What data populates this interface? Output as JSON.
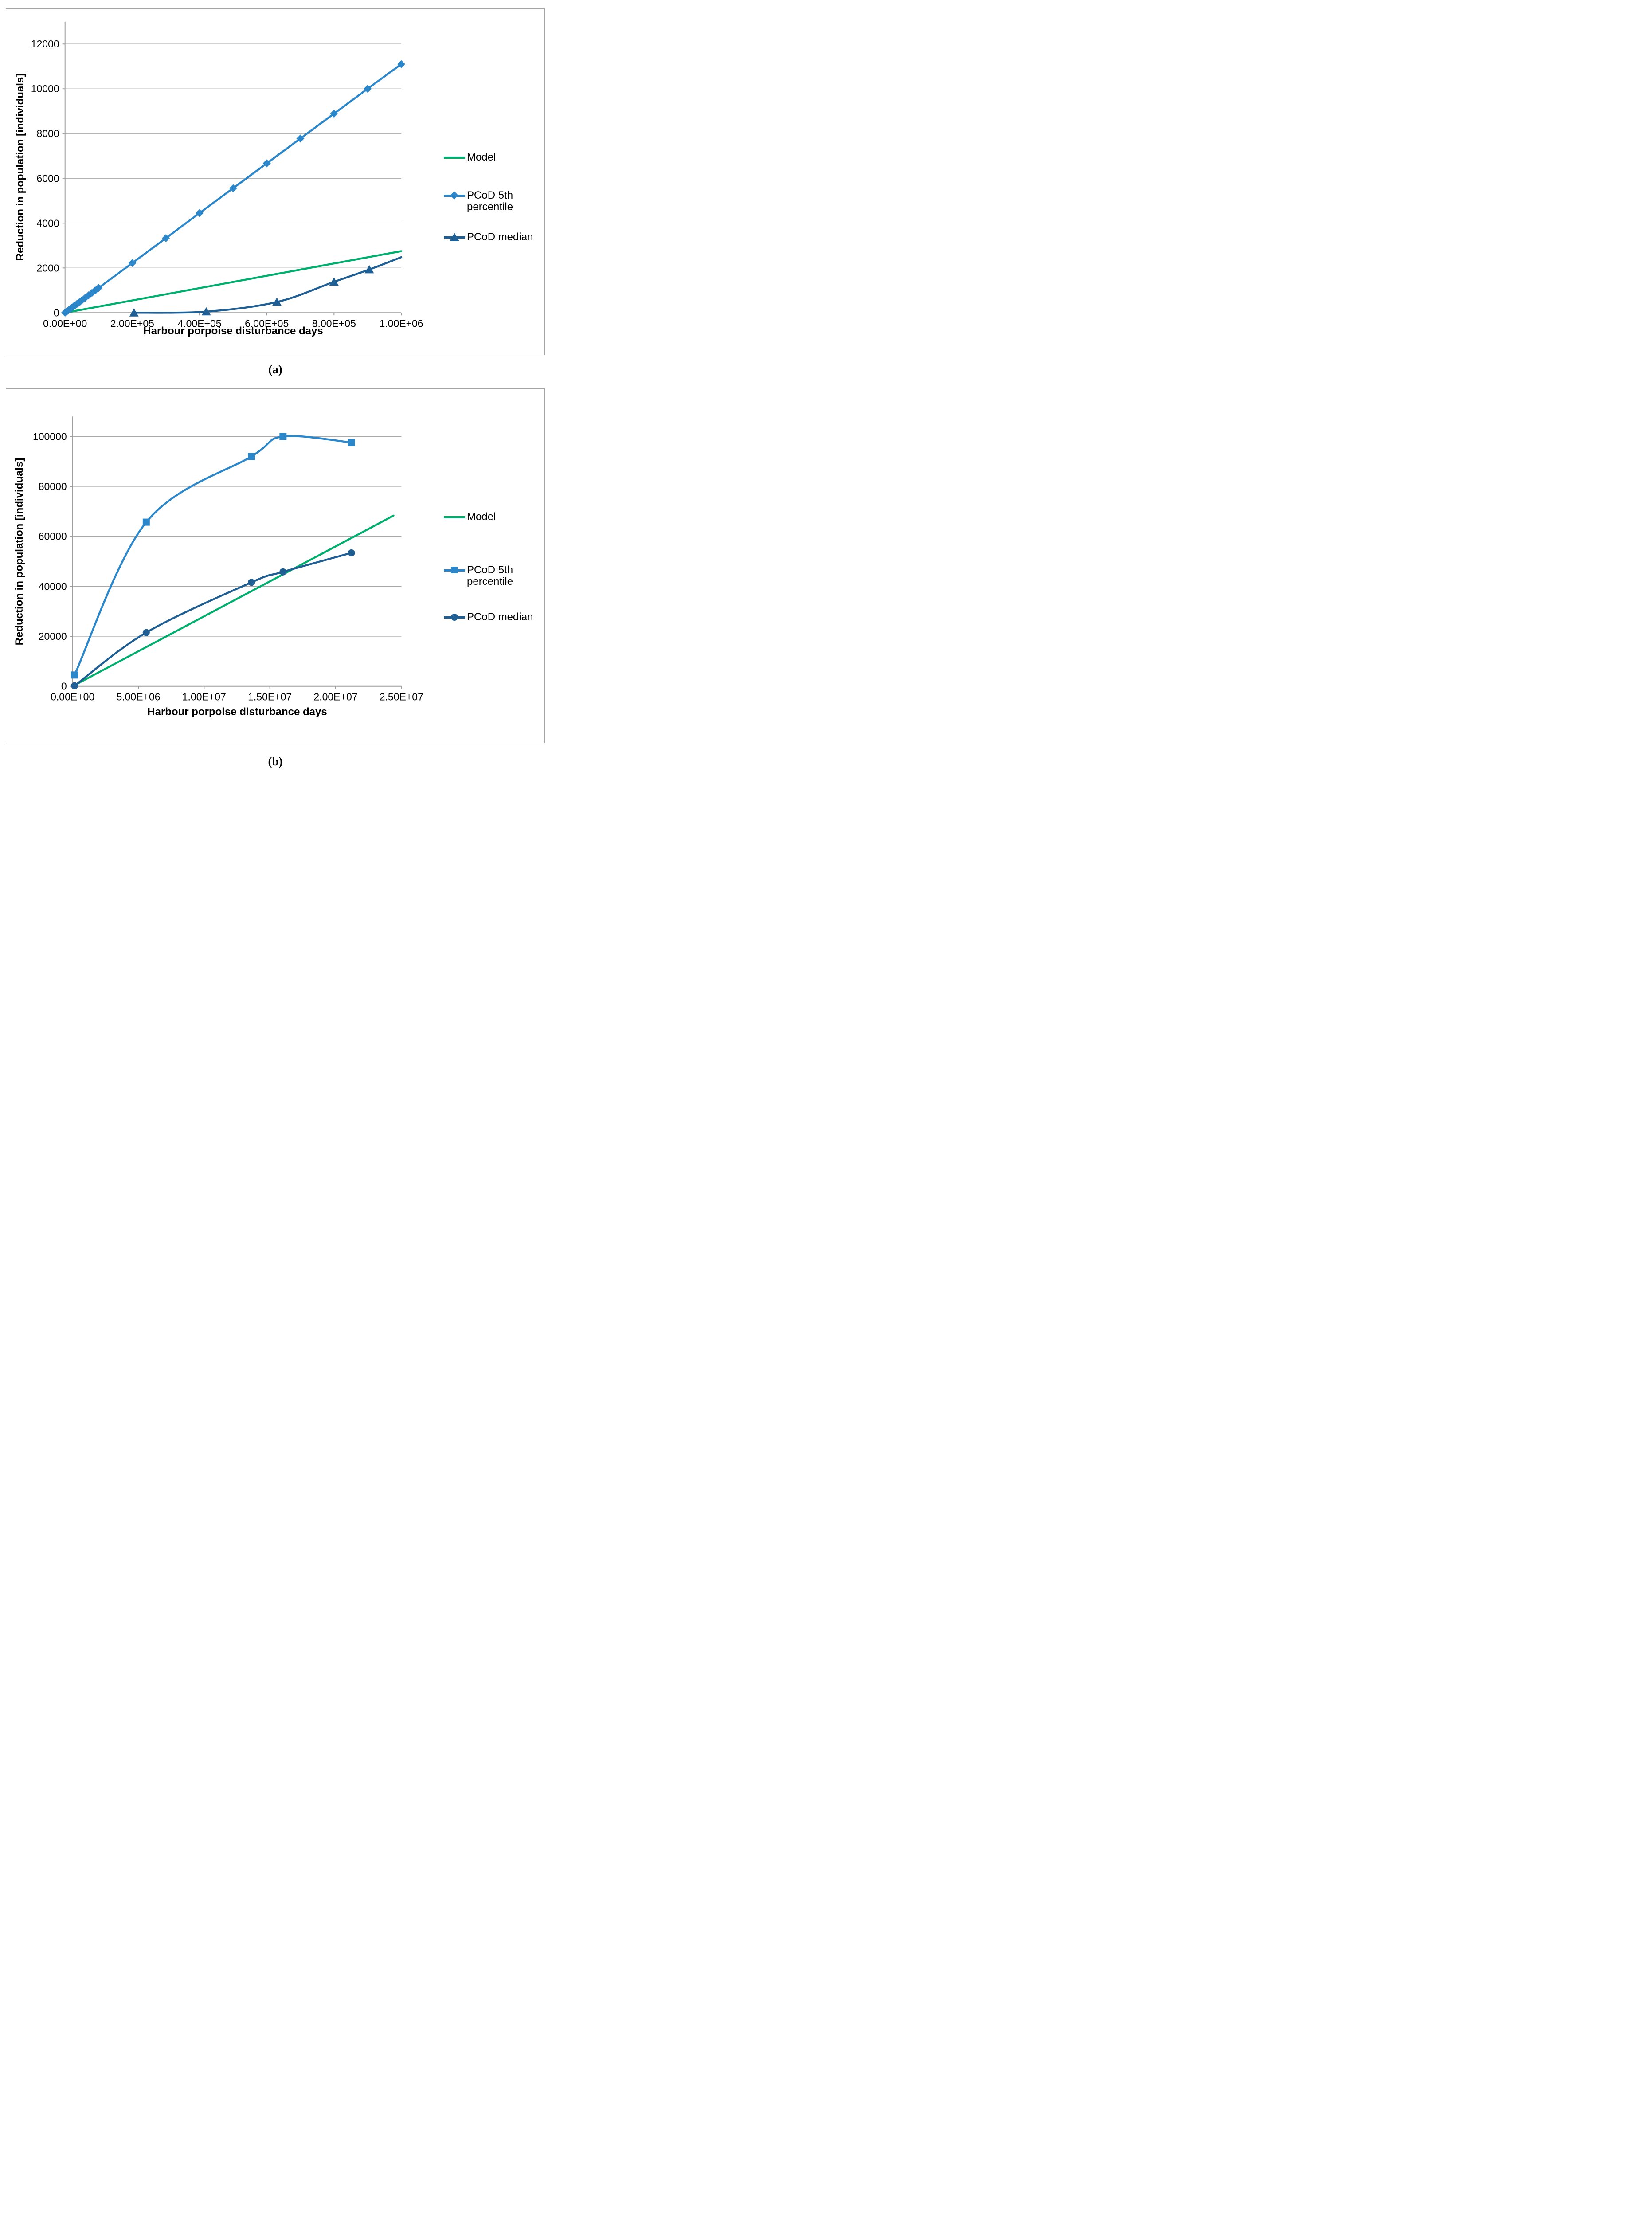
{
  "captions": {
    "a": "(a)",
    "b": "(b)"
  },
  "colors": {
    "model": "#00ae6e",
    "pcod5": "#2b87c9",
    "pcodMedian": "#1f5f94",
    "gridline": "#a9a9a9",
    "axis": "#9e9e9e",
    "text": "#000000",
    "chart_border": "#a3a3a3"
  },
  "chart_data": [
    {
      "id": "a",
      "type": "line",
      "title": "",
      "xlabel": "Harbour porpoise disturbance days",
      "ylabel": "Reduction in population [individuals]",
      "xlim": [
        0,
        1000000
      ],
      "ylim": [
        0,
        13000
      ],
      "grid": "horizontal",
      "legend_position": "right",
      "x_ticks": [
        {
          "v": 0,
          "label": "0.00E+00"
        },
        {
          "v": 200000,
          "label": "2.00E+05"
        },
        {
          "v": 400000,
          "label": "4.00E+05"
        },
        {
          "v": 600000,
          "label": "6.00E+05"
        },
        {
          "v": 800000,
          "label": "8.00E+05"
        },
        {
          "v": 1000000,
          "label": "1.00E+06"
        }
      ],
      "y_ticks": [
        {
          "v": 0,
          "label": "0"
        },
        {
          "v": 2000,
          "label": "2000"
        },
        {
          "v": 4000,
          "label": "4000"
        },
        {
          "v": 6000,
          "label": "6000"
        },
        {
          "v": 8000,
          "label": "8000"
        },
        {
          "v": 10000,
          "label": "10000"
        },
        {
          "v": 12000,
          "label": "12000"
        }
      ],
      "series": [
        {
          "name": "Model",
          "marker": "none",
          "color_key": "model",
          "smooth": false,
          "points": [
            [
              0,
              0
            ],
            [
              1000000,
              2750
            ]
          ]
        },
        {
          "name": "PCoD 5th percentile",
          "marker": "diamond",
          "color_key": "pcod5",
          "smooth": true,
          "points": [
            [
              0,
              0
            ],
            [
              5000,
              56
            ],
            [
              10000,
              111
            ],
            [
              15000,
              167
            ],
            [
              20000,
              222
            ],
            [
              25000,
              278
            ],
            [
              30000,
              333
            ],
            [
              35000,
              389
            ],
            [
              40000,
              444
            ],
            [
              45000,
              500
            ],
            [
              50000,
              555
            ],
            [
              60000,
              666
            ],
            [
              70000,
              777
            ],
            [
              80000,
              888
            ],
            [
              90000,
              999
            ],
            [
              100000,
              1110
            ],
            [
              200000,
              2220
            ],
            [
              300000,
              3330
            ],
            [
              400000,
              4450
            ],
            [
              500000,
              5560
            ],
            [
              600000,
              6670
            ],
            [
              700000,
              7780
            ],
            [
              800000,
              8890
            ],
            [
              900000,
              10000
            ],
            [
              1000000,
              11100
            ]
          ]
        },
        {
          "name": "PCoD median",
          "marker": "triangle",
          "color_key": "pcodMedian",
          "smooth": true,
          "points": [
            [
              205000,
              0
            ],
            [
              420000,
              50
            ],
            [
              630000,
              480
            ],
            [
              800000,
              1380
            ],
            [
              905000,
              1930
            ],
            [
              1000000,
              2480,
              0
            ]
          ]
        }
      ],
      "legend": [
        {
          "lines": [
            "Model"
          ]
        },
        {
          "lines": [
            "PCoD 5th",
            "percentile"
          ]
        },
        {
          "lines": [
            "PCoD median"
          ]
        }
      ]
    },
    {
      "id": "b",
      "type": "line",
      "title": "",
      "xlabel": "Harbour porpoise disturbance days",
      "ylabel": "Reduction in population [individuals]",
      "xlim": [
        0,
        25000000
      ],
      "ylim": [
        0,
        108000
      ],
      "grid": "horizontal",
      "legend_position": "right",
      "x_ticks": [
        {
          "v": 0,
          "label": "0.00E+00"
        },
        {
          "v": 5000000,
          "label": "5.00E+06"
        },
        {
          "v": 10000000,
          "label": "1.00E+07"
        },
        {
          "v": 15000000,
          "label": "1.50E+07"
        },
        {
          "v": 20000000,
          "label": "2.00E+07"
        },
        {
          "v": 25000000,
          "label": "2.50E+07"
        }
      ],
      "y_ticks": [
        {
          "v": 0,
          "label": "0"
        },
        {
          "v": 20000,
          "label": "20000"
        },
        {
          "v": 40000,
          "label": "40000"
        },
        {
          "v": 60000,
          "label": "60000"
        },
        {
          "v": 80000,
          "label": "80000"
        },
        {
          "v": 100000,
          "label": "100000"
        }
      ],
      "series": [
        {
          "name": "Model",
          "marker": "none",
          "color_key": "model",
          "smooth": false,
          "points": [
            [
              0,
              0
            ],
            [
              24400000,
              68300
            ]
          ]
        },
        {
          "name": "PCoD 5th percentile",
          "marker": "square",
          "color_key": "pcod5",
          "smooth": true,
          "points": [
            [
              150000,
              4500
            ],
            [
              5600000,
              65700
            ],
            [
              13600000,
              92000
            ],
            [
              16000000,
              100000
            ],
            [
              21200000,
              97600
            ]
          ]
        },
        {
          "name": "PCoD median",
          "marker": "circle",
          "color_key": "pcodMedian",
          "smooth": true,
          "points": [
            [
              150000,
              200
            ],
            [
              5600000,
              21500
            ],
            [
              13600000,
              41600
            ],
            [
              16000000,
              45800
            ],
            [
              21200000,
              53400
            ]
          ]
        }
      ],
      "legend": [
        {
          "lines": [
            "Model"
          ]
        },
        {
          "lines": [
            "PCoD 5th",
            "percentile"
          ]
        },
        {
          "lines": [
            "PCoD median"
          ]
        }
      ]
    }
  ]
}
